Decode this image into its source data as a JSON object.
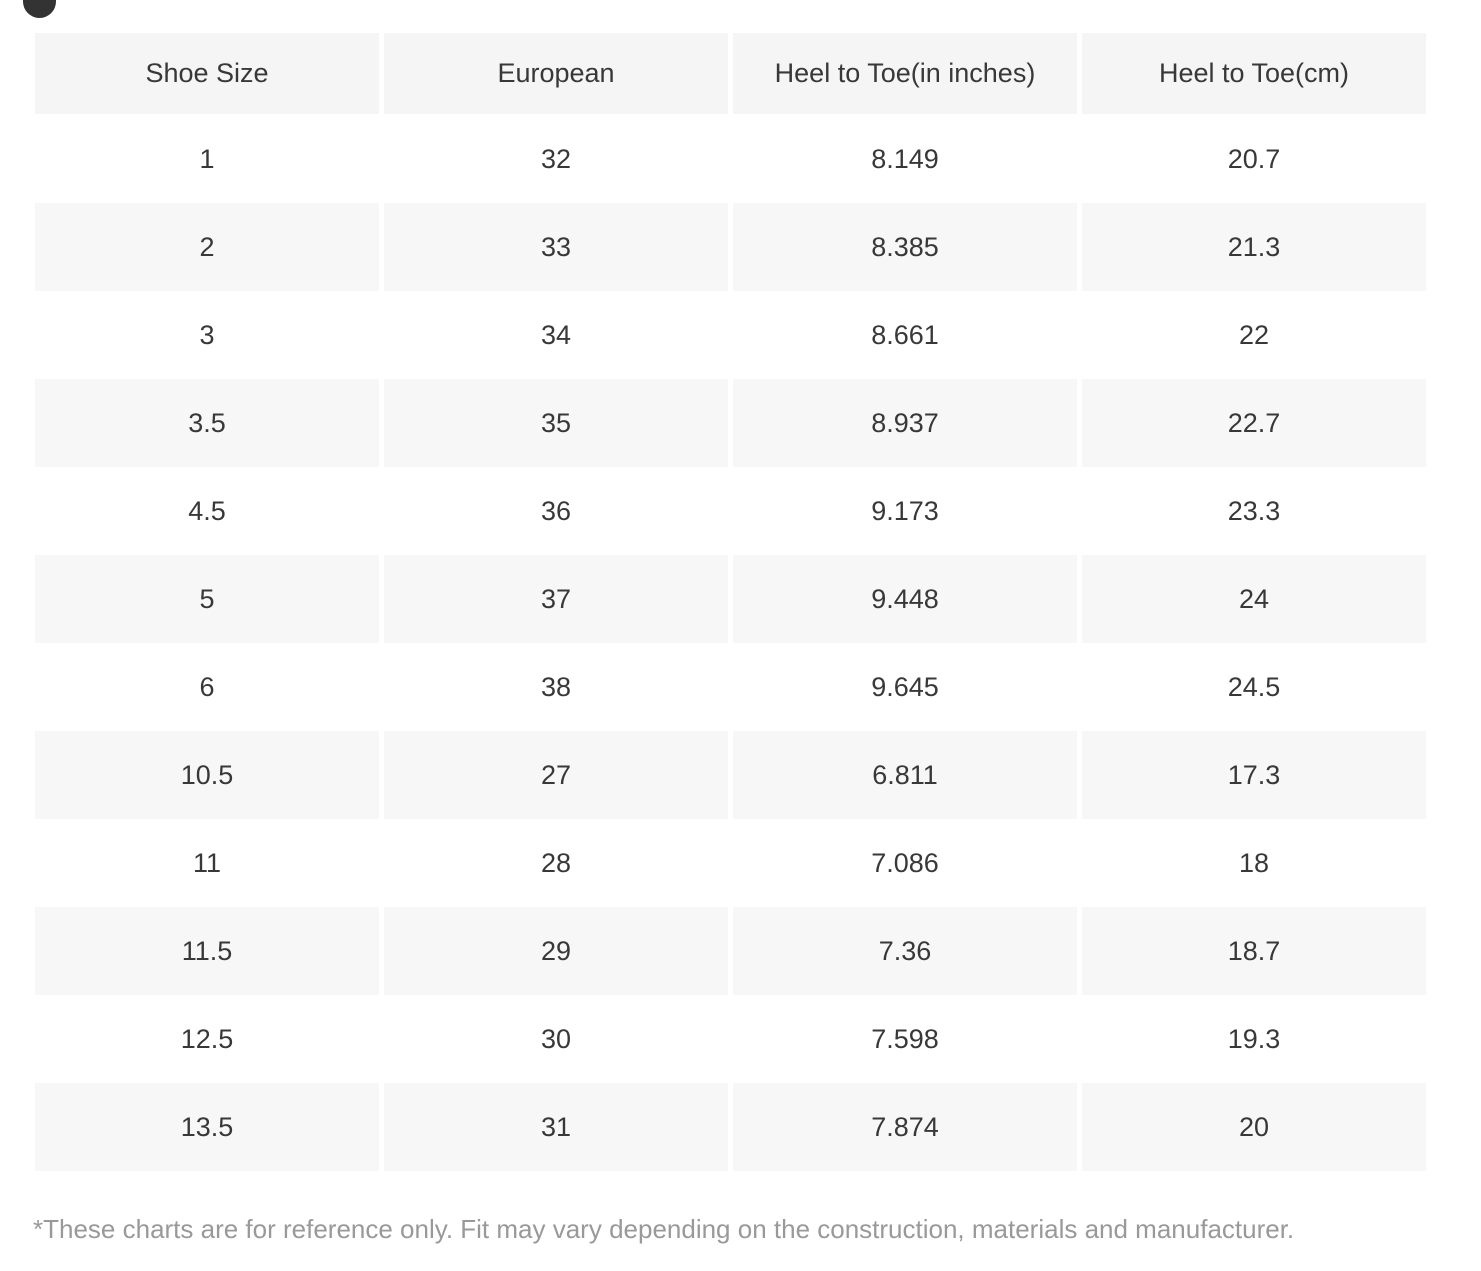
{
  "page": {
    "footnote": "*These charts are for reference only. Fit may vary depending on the construction, materials and manufacturer."
  },
  "colors": {
    "header-bg": "#f5f5f5",
    "row-alt-bg": "#f7f7f7",
    "text": "#383838",
    "footnote-text": "#999999",
    "badge": "#333333"
  },
  "chart_data": {
    "type": "table",
    "columns": [
      "Shoe Size",
      "European",
      "Heel to Toe(in inches)",
      "Heel to Toe(cm)"
    ],
    "rows": [
      [
        "1",
        "32",
        "8.149",
        "20.7"
      ],
      [
        "2",
        "33",
        "8.385",
        "21.3"
      ],
      [
        "3",
        "34",
        "8.661",
        "22"
      ],
      [
        "3.5",
        "35",
        "8.937",
        "22.7"
      ],
      [
        "4.5",
        "36",
        "9.173",
        "23.3"
      ],
      [
        "5",
        "37",
        "9.448",
        "24"
      ],
      [
        "6",
        "38",
        "9.645",
        "24.5"
      ],
      [
        "10.5",
        "27",
        "6.811",
        "17.3"
      ],
      [
        "11",
        "28",
        "7.086",
        "18"
      ],
      [
        "11.5",
        "29",
        "7.36",
        "18.7"
      ],
      [
        "12.5",
        "30",
        "7.598",
        "19.3"
      ],
      [
        "13.5",
        "31",
        "7.874",
        "20"
      ]
    ]
  }
}
